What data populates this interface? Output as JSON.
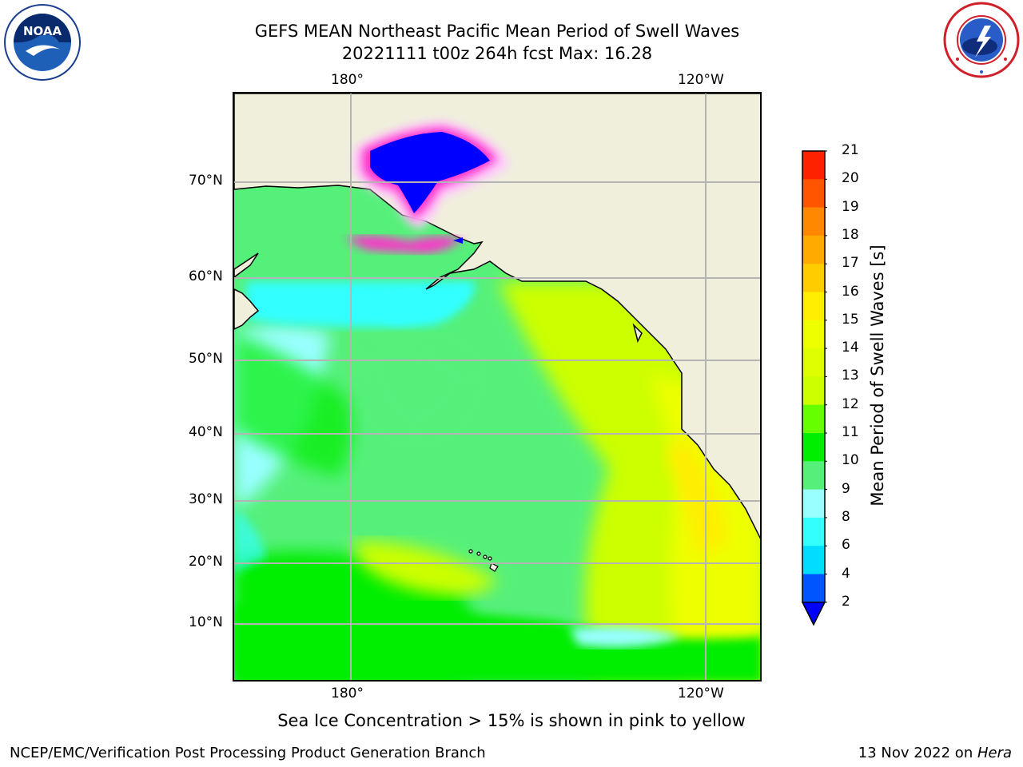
{
  "header": {
    "title_line1": "GEFS MEAN Northeast Pacific Mean Period of Swell Waves",
    "title_line2": "20221111 t00z 264h fcst   Max: 16.28"
  },
  "logos": {
    "noaa": {
      "icon": "noaa-logo",
      "text": "NOAA"
    },
    "nws": {
      "icon": "nws-logo"
    }
  },
  "map": {
    "longitude_labels_top": [
      "180°",
      "120°W"
    ],
    "longitude_labels_bottom": [
      "180°",
      "120°W"
    ],
    "latitude_labels": [
      "70°N",
      "60°N",
      "50°N",
      "40°N",
      "30°N",
      "20°N",
      "10°N"
    ],
    "land_color": "#efefdc",
    "gridline_color": "#b4b4b4"
  },
  "colorbar": {
    "label": "Mean Period of Swell Waves [s]",
    "ticks": [
      "2",
      "4",
      "6",
      "8",
      "9",
      "10",
      "11",
      "12",
      "13",
      "14",
      "15",
      "16",
      "17",
      "18",
      "19",
      "20",
      "21"
    ],
    "colors": [
      "#0055ff",
      "#00ddff",
      "#33ffff",
      "#99ffff",
      "#55f07a",
      "#00ee00",
      "#66ff00",
      "#ccff00",
      "#ddff00",
      "#eeff00",
      "#ffee00",
      "#ffcc00",
      "#ffaa00",
      "#ff8800",
      "#ff5500",
      "#ff2200"
    ],
    "extend_color": "#0000ff"
  },
  "notes": {
    "ice": "Sea Ice Concentration > 15% is shown in pink to yellow"
  },
  "footer": {
    "left": "NCEP/EMC/Verification Post Processing Product Generation Branch",
    "right_date": "13 Nov 2022 on ",
    "right_machine": "Hera"
  }
}
